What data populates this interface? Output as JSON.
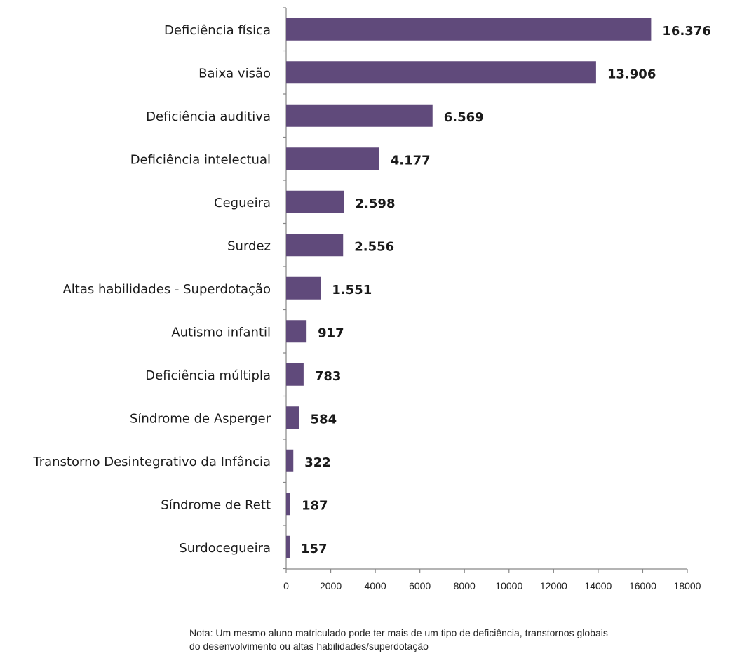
{
  "chart_data": {
    "type": "bar",
    "orientation": "horizontal",
    "categories": [
      "Deficiência física",
      "Baixa visão",
      "Deficiência auditiva",
      "Deficiência intelectual",
      "Cegueira",
      "Surdez",
      "Altas habilidades - Superdotação",
      "Autismo infantil",
      "Deficiência múltipla",
      "Síndrome de Asperger",
      "Transtorno Desintegrativo da Infância",
      "Síndrome de Rett",
      "Surdocegueira"
    ],
    "values": [
      16376,
      13906,
      6569,
      4177,
      2598,
      2556,
      1551,
      917,
      783,
      584,
      322,
      187,
      157
    ],
    "value_labels": [
      "16.376",
      "13.906",
      "6.569",
      "4.177",
      "2.598",
      "2.556",
      "1.551",
      "917",
      "783",
      "584",
      "322",
      "187",
      "157"
    ],
    "xlim": [
      0,
      18000
    ],
    "x_ticks": [
      0,
      2000,
      4000,
      6000,
      8000,
      10000,
      12000,
      14000,
      16000,
      18000
    ],
    "bar_color": "#604a7b",
    "grid": false,
    "legend": "none"
  },
  "note": {
    "line1": "Nota: Um mesmo aluno matriculado pode ter mais de um tipo de deficiência, transtornos globais",
    "line2": "do desenvolvimento ou altas habilidades/superdotação"
  }
}
